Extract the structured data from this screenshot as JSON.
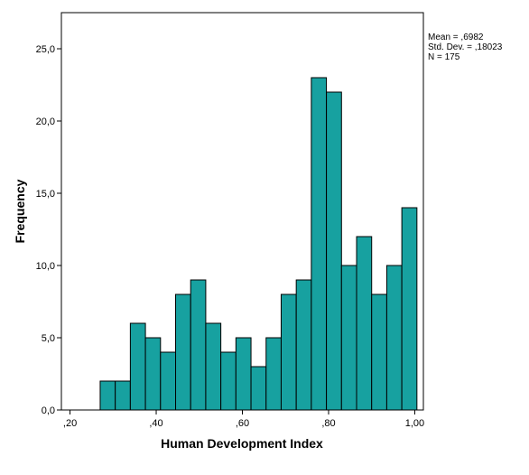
{
  "chart_data": {
    "type": "bar",
    "title": "",
    "xlabel": "Human Development Index",
    "ylabel": "Frequency",
    "xlim": [
      0.18,
      1.02
    ],
    "ylim": [
      0,
      27.5
    ],
    "xticks": [
      0.2,
      0.4,
      0.6,
      0.8,
      1.0
    ],
    "xtick_labels": [
      ",20",
      ",40",
      ",60",
      ",80",
      "1,00"
    ],
    "yticks": [
      0,
      5,
      10,
      15,
      20,
      25
    ],
    "ytick_labels": [
      "0,0",
      "5,0",
      "10,0",
      "15,0",
      "20,0",
      "25,0"
    ],
    "bin_width": 0.035,
    "bin_start": 0.27,
    "values": [
      2,
      2,
      6,
      5,
      4,
      8,
      9,
      6,
      4,
      5,
      3,
      5,
      8,
      9,
      23,
      22,
      10,
      12,
      8,
      10,
      14
    ],
    "color": "#17a1a0",
    "grid": false,
    "stats": [
      "Mean = ,6982",
      "Std. Dev. = ,18023",
      "N = 175"
    ]
  }
}
